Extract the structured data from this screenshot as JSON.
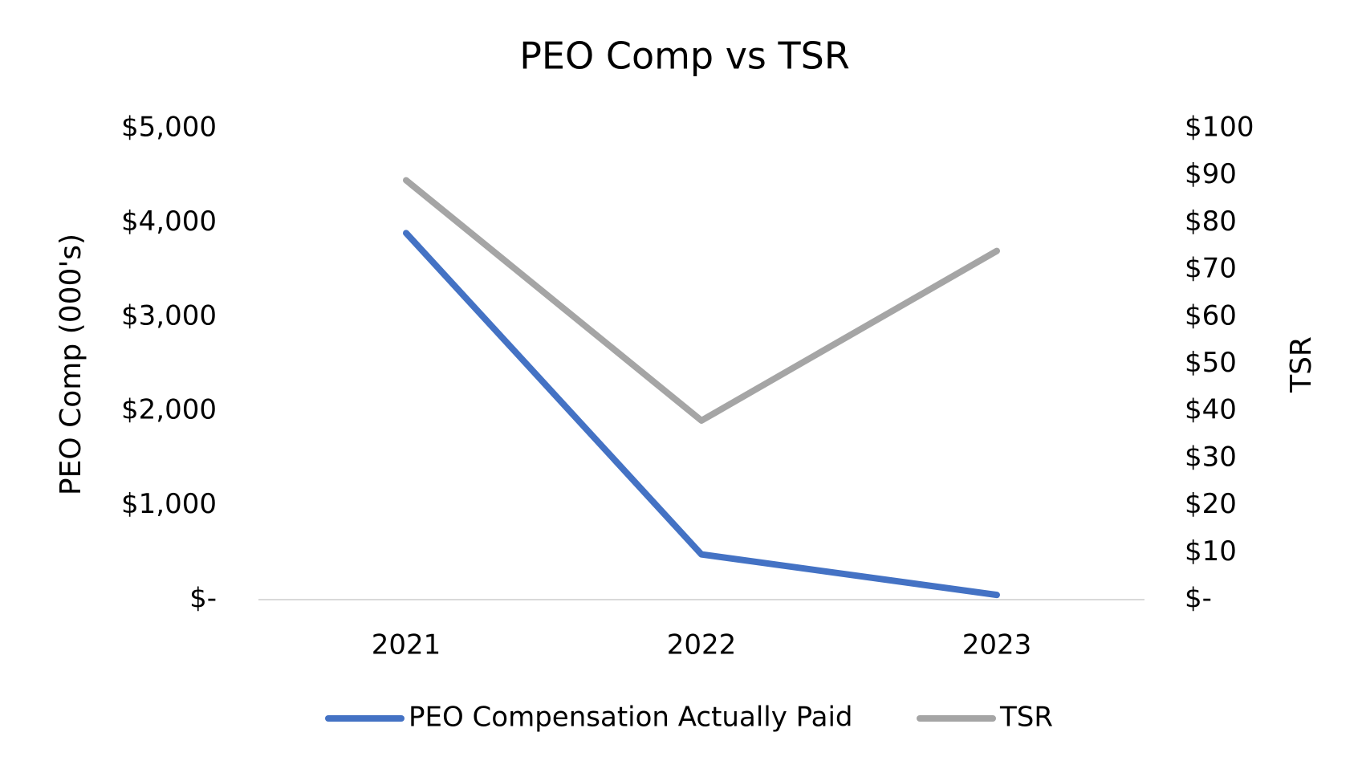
{
  "chart_data": {
    "type": "line",
    "title": "PEO Comp vs TSR",
    "categories": [
      "2021",
      "2022",
      "2023"
    ],
    "series": [
      {
        "name": "PEO Compensation Actually Paid",
        "color": "#4472c4",
        "values": [
          3890,
          480,
          50
        ]
      },
      {
        "name": "TSR",
        "color": "#a5a5a5",
        "values": [
          89,
          38,
          74
        ],
        "axis": "y2"
      }
    ],
    "ylabel": "PEO Comp (000's)",
    "y2label": "TSR",
    "ylim": [
      0,
      5000
    ],
    "yticks": [
      {
        "value": 0,
        "label": "$-"
      },
      {
        "value": 1000,
        "label": "$1,000"
      },
      {
        "value": 2000,
        "label": "$2,000"
      },
      {
        "value": 3000,
        "label": "$3,000"
      },
      {
        "value": 4000,
        "label": "$4,000"
      },
      {
        "value": 5000,
        "label": "$5,000"
      }
    ],
    "y2lim": [
      0,
      100
    ],
    "y2ticks": [
      {
        "value": 0,
        "label": "$-"
      },
      {
        "value": 10,
        "label": "$10"
      },
      {
        "value": 20,
        "label": "$20"
      },
      {
        "value": 30,
        "label": "$30"
      },
      {
        "value": 40,
        "label": "$40"
      },
      {
        "value": 50,
        "label": "$50"
      },
      {
        "value": 60,
        "label": "$60"
      },
      {
        "value": 70,
        "label": "$70"
      },
      {
        "value": 80,
        "label": "$80"
      },
      {
        "value": 90,
        "label": "$90"
      },
      {
        "value": 100,
        "label": "$100"
      }
    ],
    "grid": false,
    "legend": "bottom"
  }
}
